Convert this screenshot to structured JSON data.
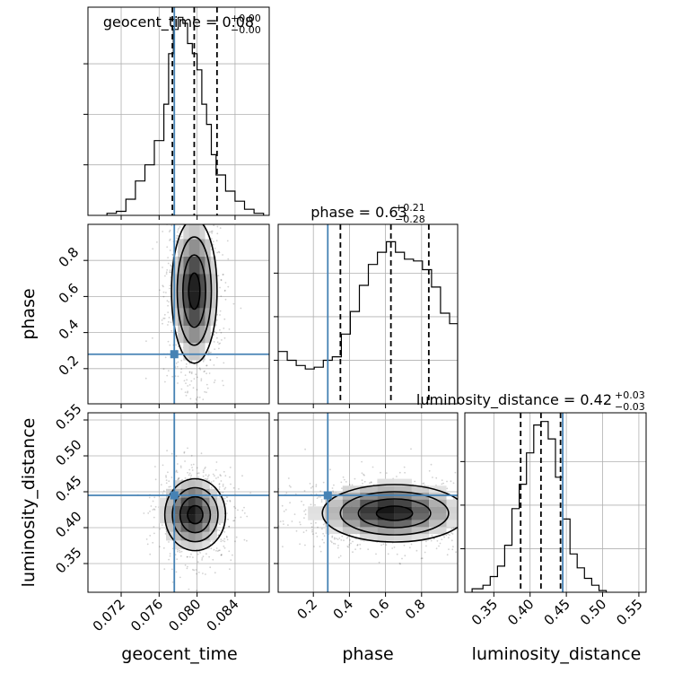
{
  "chart_data": {
    "type": "corner",
    "grid": true,
    "truth_color": "#4682b4",
    "quantile_levels": [
      0.16,
      0.5,
      0.84
    ],
    "parameters": [
      {
        "name": "geocent_time",
        "axis_label": "geocent_time",
        "title_name": "geocent_time = 0.08",
        "title_sup": "+0.00",
        "title_sub": "−0.00",
        "range": [
          0.0685,
          0.0876
        ],
        "ticks": [
          0.072,
          0.076,
          0.08,
          0.084
        ],
        "tick_labels": [
          "0.072",
          "0.076",
          "0.080",
          "0.084"
        ],
        "truth": 0.0776,
        "quantiles": [
          0.0774,
          0.0797,
          0.0821
        ]
      },
      {
        "name": "phase",
        "axis_label": "phase",
        "title_name": "phase = 0.63",
        "title_sup": "+0.21",
        "title_sub": "−0.28",
        "range": [
          0.005,
          1.0
        ],
        "ticks": [
          0.2,
          0.4,
          0.6,
          0.8
        ],
        "tick_labels": [
          "0.2",
          "0.4",
          "0.6",
          "0.8"
        ],
        "truth": 0.28,
        "quantiles": [
          0.35,
          0.63,
          0.84
        ]
      },
      {
        "name": "luminosity_distance",
        "axis_label": "luminosity_distance",
        "title_name": "luminosity_distance = 0.42",
        "title_sup": "+0.03",
        "title_sub": "−0.03",
        "range": [
          0.31,
          0.56
        ],
        "ticks": [
          0.35,
          0.4,
          0.45,
          0.5,
          0.55
        ],
        "tick_labels": [
          "0.35",
          "0.40",
          "0.45",
          "0.50",
          "0.55"
        ],
        "truth": 0.445,
        "quantiles": [
          0.387,
          0.415,
          0.442
        ]
      }
    ],
    "marginals": [
      {
        "parameter": "geocent_time",
        "bin_edges": [
          0.0705,
          0.0715,
          0.0725,
          0.0735,
          0.0745,
          0.0755,
          0.0765,
          0.077,
          0.0775,
          0.078,
          0.0785,
          0.079,
          0.0795,
          0.08,
          0.0805,
          0.081,
          0.0815,
          0.082,
          0.083,
          0.084,
          0.085,
          0.086,
          0.087
        ],
        "counts": [
          0.01,
          0.02,
          0.08,
          0.17,
          0.25,
          0.37,
          0.55,
          0.8,
          0.92,
          0.98,
          0.95,
          0.85,
          0.8,
          0.72,
          0.55,
          0.45,
          0.3,
          0.2,
          0.12,
          0.07,
          0.03,
          0.01
        ],
        "ylim": [
          0,
          1.03
        ],
        "yticks": [
          0.25,
          0.5,
          0.75
        ]
      },
      {
        "parameter": "phase",
        "bin_edges": [
          0.005,
          0.055,
          0.105,
          0.155,
          0.205,
          0.255,
          0.305,
          0.355,
          0.405,
          0.455,
          0.505,
          0.555,
          0.605,
          0.655,
          0.705,
          0.755,
          0.805,
          0.855,
          0.905,
          0.955,
          1.0
        ],
        "counts": [
          0.3,
          0.25,
          0.22,
          0.2,
          0.21,
          0.25,
          0.27,
          0.4,
          0.53,
          0.68,
          0.8,
          0.87,
          0.93,
          0.87,
          0.83,
          0.82,
          0.77,
          0.67,
          0.52,
          0.46
        ],
        "ylim": [
          0,
          1.03
        ],
        "yticks": [
          0.25,
          0.5,
          0.75
        ]
      },
      {
        "parameter": "luminosity_distance",
        "bin_edges": [
          0.32,
          0.335,
          0.345,
          0.355,
          0.365,
          0.375,
          0.385,
          0.395,
          0.405,
          0.415,
          0.425,
          0.435,
          0.445,
          0.455,
          0.465,
          0.475,
          0.485,
          0.495,
          0.505
        ],
        "counts": [
          0.02,
          0.04,
          0.09,
          0.15,
          0.27,
          0.48,
          0.62,
          0.8,
          0.96,
          0.98,
          0.88,
          0.66,
          0.42,
          0.22,
          0.14,
          0.08,
          0.04,
          0.01
        ],
        "ylim": [
          0,
          1.03
        ],
        "yticks": [
          0.25,
          0.5,
          0.75
        ]
      }
    ],
    "joint": [
      {
        "x": "geocent_time",
        "y": "phase",
        "center": [
          0.0797,
          0.63
        ],
        "spread": [
          0.0012,
          0.2
        ],
        "truth": [
          0.0776,
          0.28
        ],
        "peak": [
          0.0797,
          0.63
        ]
      },
      {
        "x": "geocent_time",
        "y": "luminosity_distance",
        "center": [
          0.0798,
          0.418
        ],
        "spread": [
          0.0016,
          0.025
        ],
        "truth": [
          0.0776,
          0.445
        ],
        "peak": [
          0.0794,
          0.42
        ]
      },
      {
        "x": "phase",
        "y": "luminosity_distance",
        "center": [
          0.65,
          0.42
        ],
        "spread": [
          0.2,
          0.02
        ],
        "truth": [
          0.28,
          0.445
        ],
        "peak": [
          0.62,
          0.423
        ]
      }
    ]
  }
}
